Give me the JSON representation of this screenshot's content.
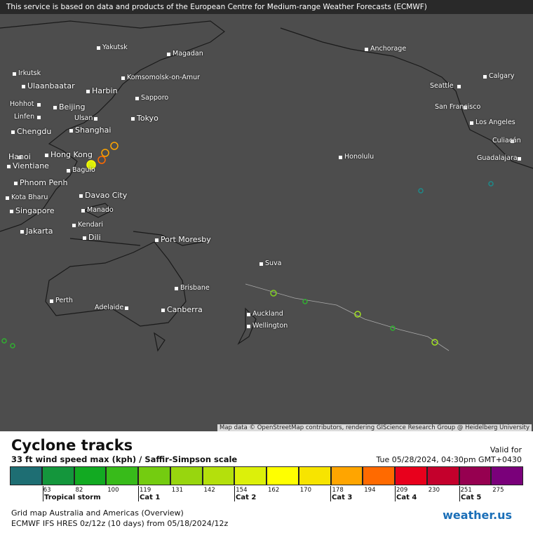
{
  "header": {
    "notice": "This service is based on data and products of the European Centre for Medium-range Weather Forecasts (ECMWF)"
  },
  "map": {
    "cities": [
      "Yakutsk",
      "Magadan",
      "Anchorage",
      "Irkutsk",
      "Ulaanbaatar",
      "Komsomolsk-on-Amur",
      "Harbin",
      "Calgary",
      "Seattle",
      "Sapporo",
      "Hohhot",
      "Beijing",
      "San Francisco",
      "Linfen",
      "Ulsan",
      "Tokyo",
      "Los Angeles",
      "Chengdu",
      "Shanghai",
      "Culiacán",
      "Hanoi",
      "Hong Kong",
      "Honolulu",
      "Guadalajara",
      "Vientiane",
      "Baguio",
      "Phnom Penh",
      "Davao City",
      "Kota Bharu",
      "Singapore",
      "Manado",
      "Kendari",
      "Jakarta",
      "Dili",
      "Port Moresby",
      "Suva",
      "Brisbane",
      "Perth",
      "Adelaide",
      "Canberra",
      "Auckland",
      "Wellington"
    ],
    "attribution": "Map data © OpenStreetMap contributors, rendering GIScience Research Group @ Heidelberg University"
  },
  "legend": {
    "title": "Cyclone tracks",
    "subtitle": "33 ft wind speed max (kph) / Saffir-Simpson scale",
    "valid_label": "Valid for",
    "valid_time": "Tue 05/28/2024, 04:30pm GMT+0430",
    "colors": [
      "#1e6e73",
      "#14963c",
      "#12aa22",
      "#38bb1a",
      "#74cc10",
      "#98d60e",
      "#b4e00c",
      "#dcf00a",
      "#ffff00",
      "#f7e400",
      "#ffa500",
      "#ff6a00",
      "#e8001c",
      "#c4002c",
      "#960050",
      "#7a007a"
    ],
    "ticks": [
      63,
      82,
      100,
      119,
      131,
      142,
      154,
      162,
      170,
      178,
      194,
      209,
      230,
      251,
      275
    ],
    "categories": [
      "Tropical storm",
      "Cat 1",
      "Cat 2",
      "Cat 3",
      "Cat 4",
      "Cat 5"
    ]
  },
  "footer": {
    "grid": "Grid map Australia and Americas (Overview)",
    "model": "ECMWF IFS HRES 0z/12z (10 days)  from  05/18/2024/12z",
    "logo": "weather.us"
  }
}
